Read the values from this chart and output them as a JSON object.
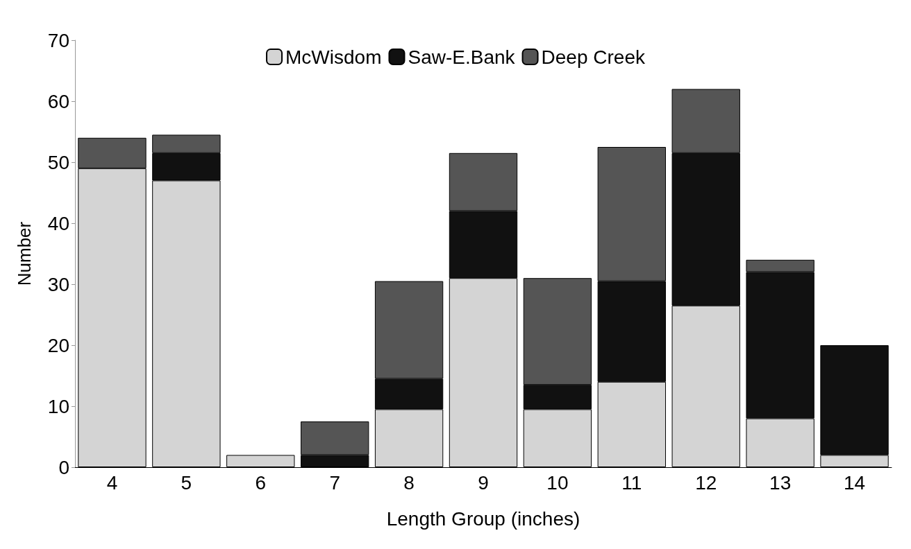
{
  "chart_data": {
    "type": "bar",
    "stacked": true,
    "xlabel": "Length Group (inches)",
    "ylabel": "Number",
    "categories": [
      "4",
      "5",
      "6",
      "7",
      "8",
      "9",
      "10",
      "11",
      "12",
      "13",
      "14"
    ],
    "series": [
      {
        "name": "McWisdom",
        "color": "#d4d4d4",
        "values": [
          49,
          47,
          2,
          0,
          9.5,
          31,
          9.5,
          14,
          26.5,
          8,
          2
        ]
      },
      {
        "name": "Saw-E.Bank",
        "color": "#111111",
        "values": [
          0,
          4.5,
          0,
          2,
          5,
          11,
          4,
          16.5,
          25,
          24,
          18
        ]
      },
      {
        "name": "Deep Creek",
        "color": "#555555",
        "values": [
          5,
          3,
          0,
          5.5,
          16,
          9.5,
          17.5,
          22,
          10.5,
          2,
          0
        ]
      }
    ],
    "ylim": [
      0,
      70
    ],
    "yticks": [
      0,
      10,
      20,
      30,
      40,
      50,
      60,
      70
    ],
    "grid": false,
    "legend": "top"
  }
}
